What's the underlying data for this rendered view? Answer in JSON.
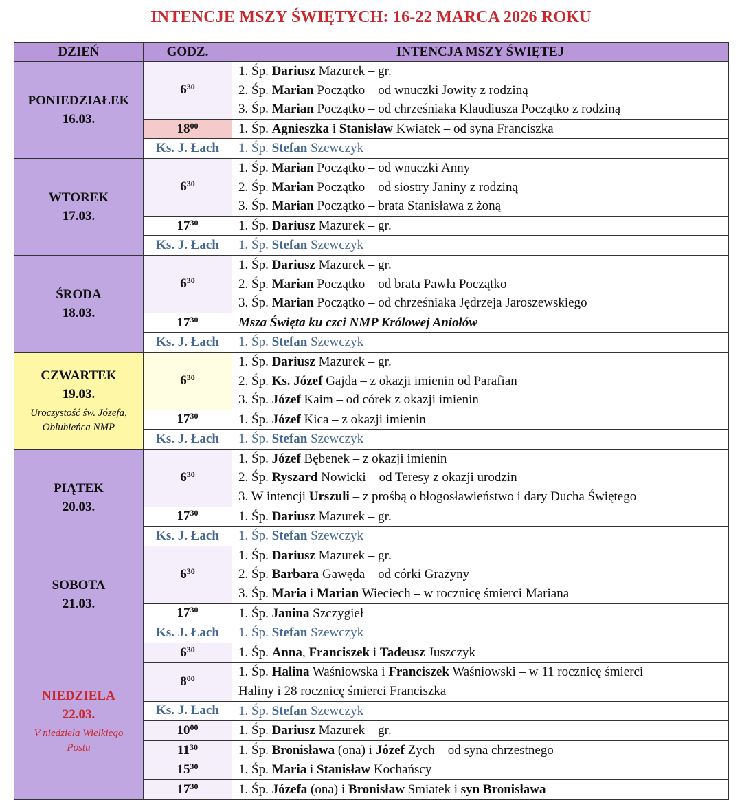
{
  "title": "INTENCJE MSZY ŚWIĘTYCH: 16-22 MARCA 2026 ROKU",
  "headers": {
    "day": "DZIEŃ",
    "time": "GODZ.",
    "intention": "INTENCJA MSZY ŚWIĘTEJ"
  },
  "colors": {
    "title": "#c8282e",
    "header_bg": "#b897db",
    "day_bg": "#c0a7e1",
    "thursday_bg": "#fdf7a6",
    "priest_text": "#45688f",
    "highlight_time_bg": "#f5caca"
  },
  "days": [
    {
      "name": "PONIEDZIAŁEK",
      "date": "16.03.",
      "style": "",
      "rows": [
        {
          "h": "6",
          "m": "30",
          "cls": "lav",
          "lines": [
            [
              [
                "1. Śp. ",
                "n"
              ],
              [
                "Dariusz",
                "b"
              ],
              [
                " Mazurek – gr.",
                "n"
              ]
            ],
            [
              [
                "2. Śp. ",
                "n"
              ],
              [
                "Marian",
                "b"
              ],
              [
                " Początko – od wnuczki Jowity z rodziną",
                "n"
              ]
            ],
            [
              [
                "3. Śp. ",
                "n"
              ],
              [
                "Marian",
                "b"
              ],
              [
                " Początko – od chrześniaka Klaudiusza Początko z rodziną",
                "n"
              ]
            ]
          ]
        },
        {
          "h": "18",
          "m": "00",
          "cls": "pink",
          "lines": [
            [
              [
                "1. Śp. ",
                "n"
              ],
              [
                "Agnieszka",
                "b"
              ],
              [
                " i ",
                "n"
              ],
              [
                "Stanisław",
                "b"
              ],
              [
                " Kwiatek – od syna Franciszka",
                "n"
              ]
            ]
          ]
        },
        {
          "h": "Ks. J. Łach",
          "m": "",
          "cls": "priest",
          "lines": [
            [
              [
                "1. Śp. ",
                "n"
              ],
              [
                "Stefan",
                "b"
              ],
              [
                " Szewczyk",
                "n"
              ]
            ]
          ]
        }
      ]
    },
    {
      "name": "WTOREK",
      "date": "17.03.",
      "style": "",
      "rows": [
        {
          "h": "6",
          "m": "30",
          "cls": "lav",
          "lines": [
            [
              [
                "1. Śp. ",
                "n"
              ],
              [
                "Marian",
                "b"
              ],
              [
                " Początko – od wnuczki Anny",
                "n"
              ]
            ],
            [
              [
                "2. Śp. ",
                "n"
              ],
              [
                "Marian",
                "b"
              ],
              [
                " Początko – od siostry Janiny z rodziną",
                "n"
              ]
            ],
            [
              [
                "3. Śp. ",
                "n"
              ],
              [
                "Marian",
                "b"
              ],
              [
                " Początko – brata Stanisława z żoną",
                "n"
              ]
            ]
          ]
        },
        {
          "h": "17",
          "m": "30",
          "cls": "",
          "lines": [
            [
              [
                "1. Śp. ",
                "n"
              ],
              [
                "Dariusz",
                "b"
              ],
              [
                " Mazurek – gr.",
                "n"
              ]
            ]
          ]
        },
        {
          "h": "Ks. J. Łach",
          "m": "",
          "cls": "priest",
          "lines": [
            [
              [
                "1. Śp. ",
                "n"
              ],
              [
                "Stefan",
                "b"
              ],
              [
                " Szewczyk",
                "n"
              ]
            ]
          ]
        }
      ]
    },
    {
      "name": "ŚRODA",
      "date": "18.03.",
      "style": "",
      "rows": [
        {
          "h": "6",
          "m": "30",
          "cls": "lav",
          "lines": [
            [
              [
                "1. Śp. ",
                "n"
              ],
              [
                "Dariusz",
                "b"
              ],
              [
                " Mazurek – gr.",
                "n"
              ]
            ],
            [
              [
                "2. Śp. ",
                "n"
              ],
              [
                "Marian",
                "b"
              ],
              [
                " Początko – od brata Pawła Początko",
                "n"
              ]
            ],
            [
              [
                "3. Śp. ",
                "n"
              ],
              [
                "Marian",
                "b"
              ],
              [
                " Początko – od chrześniaka Jędrzeja Jaroszewskiego",
                "n"
              ]
            ]
          ]
        },
        {
          "h": "17",
          "m": "30",
          "cls": "",
          "lines": [
            [
              [
                "Msza Święta ku czci NMP Królowej Aniołów",
                "bi"
              ]
            ]
          ]
        },
        {
          "h": "Ks. J. Łach",
          "m": "",
          "cls": "priest",
          "lines": [
            [
              [
                "1. Śp. ",
                "n"
              ],
              [
                "Stefan",
                "b"
              ],
              [
                " Szewczyk",
                "n"
              ]
            ]
          ]
        }
      ]
    },
    {
      "name": "CZWARTEK",
      "date": "19.03.",
      "note": "Uroczystość św. Józefa, Oblubieńca NMP",
      "style": "yellow",
      "rows": [
        {
          "h": "6",
          "m": "30",
          "cls": "yel",
          "lines": [
            [
              [
                "1. Śp. ",
                "n"
              ],
              [
                "Dariusz",
                "b"
              ],
              [
                " Mazurek – gr.",
                "n"
              ]
            ],
            [
              [
                "2. Śp. ",
                "n"
              ],
              [
                "Ks. Józef",
                "b"
              ],
              [
                " Gajda – z okazji imienin od Parafian",
                "n"
              ]
            ],
            [
              [
                "3. Śp. ",
                "n"
              ],
              [
                "Józef",
                "b"
              ],
              [
                " Kaim – od córek z okazji imienin",
                "n"
              ]
            ]
          ]
        },
        {
          "h": "17",
          "m": "30",
          "cls": "",
          "lines": [
            [
              [
                "1. Śp. ",
                "n"
              ],
              [
                "Józef",
                "b"
              ],
              [
                " Kica – z okazji imienin",
                "n"
              ]
            ]
          ]
        },
        {
          "h": "Ks. J. Łach",
          "m": "",
          "cls": "priest",
          "lines": [
            [
              [
                "1. Śp. ",
                "n"
              ],
              [
                "Stefan",
                "b"
              ],
              [
                " Szewczyk",
                "n"
              ]
            ]
          ]
        }
      ]
    },
    {
      "name": "PIĄTEK",
      "date": "20.03.",
      "style": "",
      "rows": [
        {
          "h": "6",
          "m": "30",
          "cls": "lav",
          "lines": [
            [
              [
                "1. Śp. ",
                "n"
              ],
              [
                "Józef",
                "b"
              ],
              [
                " Bębenek – z okazji imienin",
                "n"
              ]
            ],
            [
              [
                "2. Śp. ",
                "n"
              ],
              [
                "Ryszard",
                "b"
              ],
              [
                " Nowicki – od Teresy z okazji urodzin",
                "n"
              ]
            ],
            [
              [
                "3. W intencji ",
                "n"
              ],
              [
                "Urszuli",
                "b"
              ],
              [
                " – z prośbą o błogosławieństwo i dary Ducha Świętego",
                "n"
              ]
            ]
          ]
        },
        {
          "h": "17",
          "m": "30",
          "cls": "",
          "lines": [
            [
              [
                "1. Śp. ",
                "n"
              ],
              [
                "Dariusz",
                "b"
              ],
              [
                " Mazurek – gr.",
                "n"
              ]
            ]
          ]
        },
        {
          "h": "Ks. J. Łach",
          "m": "",
          "cls": "priest",
          "lines": [
            [
              [
                "1. Śp. ",
                "n"
              ],
              [
                "Stefan",
                "b"
              ],
              [
                " Szewczyk",
                "n"
              ]
            ]
          ]
        }
      ]
    },
    {
      "name": "SOBOTA",
      "date": "21.03.",
      "style": "",
      "rows": [
        {
          "h": "6",
          "m": "30",
          "cls": "lav",
          "lines": [
            [
              [
                "1. Śp. ",
                "n"
              ],
              [
                "Dariusz",
                "b"
              ],
              [
                " Mazurek – gr.",
                "n"
              ]
            ],
            [
              [
                "2. Śp. ",
                "n"
              ],
              [
                "Barbara",
                "b"
              ],
              [
                " Gawęda – od córki Grażyny",
                "n"
              ]
            ],
            [
              [
                "3. Śp. ",
                "n"
              ],
              [
                "Maria",
                "b"
              ],
              [
                " i ",
                "n"
              ],
              [
                "Marian",
                "b"
              ],
              [
                " Wieciech – w rocznicę śmierci Mariana",
                "n"
              ]
            ]
          ]
        },
        {
          "h": "17",
          "m": "30",
          "cls": "",
          "lines": [
            [
              [
                "1. Śp. ",
                "n"
              ],
              [
                "Janina",
                "b"
              ],
              [
                " Szczygieł",
                "n"
              ]
            ]
          ]
        },
        {
          "h": "Ks. J. Łach",
          "m": "",
          "cls": "priest",
          "lines": [
            [
              [
                "1. Śp. ",
                "n"
              ],
              [
                "Stefan",
                "b"
              ],
              [
                " Szewczyk",
                "n"
              ]
            ]
          ]
        }
      ]
    },
    {
      "name": "NIEDZIELA",
      "date": "22.03.",
      "note": "V niedziela Wielkiego Postu",
      "style": "red",
      "rows": [
        {
          "h": "6",
          "m": "30",
          "cls": "lav",
          "lines": [
            [
              [
                "1. Śp. ",
                "n"
              ],
              [
                "Anna",
                "b"
              ],
              [
                ", ",
                "n"
              ],
              [
                "Franciszek",
                "b"
              ],
              [
                " i ",
                "n"
              ],
              [
                "Tadeusz",
                "b"
              ],
              [
                " Juszczyk",
                "n"
              ]
            ]
          ]
        },
        {
          "h": "8",
          "m": "00",
          "cls": "lav",
          "lines": [
            [
              [
                "1. Śp. ",
                "n"
              ],
              [
                "Halina",
                "b"
              ],
              [
                " Waśniowska i ",
                "n"
              ],
              [
                "Franciszek",
                "b"
              ],
              [
                " Waśniowski – w 11 rocznicę śmierci",
                "n"
              ]
            ],
            [
              [
                "Haliny i 28 rocznicę śmierci Franciszka",
                "n"
              ]
            ]
          ]
        },
        {
          "h": "Ks. J. Łach",
          "m": "",
          "cls": "priest",
          "lines": [
            [
              [
                "1. Śp. ",
                "n"
              ],
              [
                "Stefan",
                "b"
              ],
              [
                " Szewczyk",
                "n"
              ]
            ]
          ]
        },
        {
          "h": "10",
          "m": "00",
          "cls": "lav",
          "lines": [
            [
              [
                "1. Śp. ",
                "n"
              ],
              [
                "Dariusz",
                "b"
              ],
              [
                " Mazurek – gr.",
                "n"
              ]
            ]
          ]
        },
        {
          "h": "11",
          "m": "30",
          "cls": "lav",
          "lines": [
            [
              [
                "1. Śp. ",
                "n"
              ],
              [
                "Bronisława",
                "b"
              ],
              [
                " (ona) i ",
                "n"
              ],
              [
                "Józef",
                "b"
              ],
              [
                " Zych – od syna chrzestnego",
                "n"
              ]
            ]
          ]
        },
        {
          "h": "15",
          "m": "30",
          "cls": "lav",
          "lines": [
            [
              [
                "1. Śp. ",
                "n"
              ],
              [
                "Maria",
                "b"
              ],
              [
                " i ",
                "n"
              ],
              [
                "Stanisław",
                "b"
              ],
              [
                " Kochańscy",
                "n"
              ]
            ]
          ]
        },
        {
          "h": "17",
          "m": "30",
          "cls": "lav",
          "lines": [
            [
              [
                "1. Śp. ",
                "n"
              ],
              [
                "Józefa",
                "b"
              ],
              [
                " (ona) i ",
                "n"
              ],
              [
                "Bronisław",
                "b"
              ],
              [
                " Smiatek i ",
                "n"
              ],
              [
                "syn Bronisława",
                "b"
              ]
            ]
          ]
        }
      ]
    }
  ]
}
